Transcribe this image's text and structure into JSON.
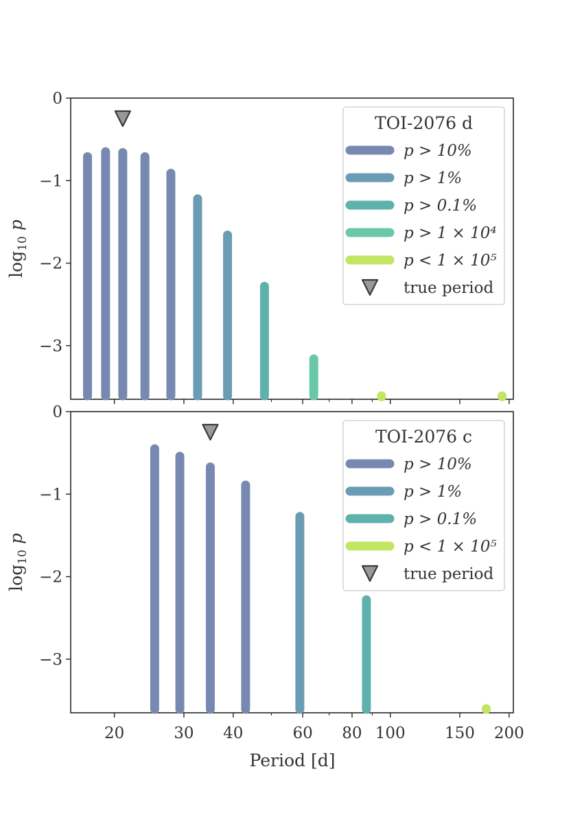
{
  "chart_data": [
    {
      "type": "bar",
      "panel": "top",
      "title": "TOI-2076 d",
      "xlabel": "",
      "ylabel": "log₁₀ p",
      "x_scale": "log",
      "xlim": [
        15.5,
        205
      ],
      "ylim": [
        -3.65,
        0
      ],
      "yticks": [
        0,
        -1,
        -2,
        -3
      ],
      "ytick_labels": [
        "0",
        "−1",
        "−2",
        "−3"
      ],
      "legend_position": "top-right",
      "legend": [
        {
          "label": "p > 10%",
          "color": "#7789b0",
          "kind": "line"
        },
        {
          "label": "p > 1%",
          "color": "#6a9cb4",
          "kind": "line"
        },
        {
          "label": "p > 0.1%",
          "color": "#5fb2ac",
          "kind": "line"
        },
        {
          "label": "p > 1 × 10⁴",
          "color": "#69c9a6",
          "kind": "line"
        },
        {
          "label": "p < 1 × 10⁵",
          "color": "#c2e562",
          "kind": "line"
        },
        {
          "label": "true period",
          "color": "#999999",
          "kind": "triangle"
        }
      ],
      "true_period": 21.0,
      "bars": [
        {
          "x": 17.1,
          "y": -0.71,
          "color": "#7789b0"
        },
        {
          "x": 19.0,
          "y": -0.65,
          "color": "#7789b0"
        },
        {
          "x": 21.0,
          "y": -0.66,
          "color": "#7789b0"
        },
        {
          "x": 23.9,
          "y": -0.71,
          "color": "#7789b0"
        },
        {
          "x": 27.8,
          "y": -0.91,
          "color": "#7789b0"
        },
        {
          "x": 32.5,
          "y": -1.22,
          "color": "#6a9cb4"
        },
        {
          "x": 38.7,
          "y": -1.66,
          "color": "#6a9cb4"
        },
        {
          "x": 48.0,
          "y": -2.28,
          "color": "#5fb2ac"
        },
        {
          "x": 64.0,
          "y": -3.16,
          "color": "#69c9a6"
        },
        {
          "x": 95.0,
          "y": -3.62,
          "color": "#c2e562"
        },
        {
          "x": 192.0,
          "y": -3.62,
          "color": "#c2e562"
        }
      ]
    },
    {
      "type": "bar",
      "panel": "bottom",
      "title": "TOI-2076 c",
      "xlabel": "Period [d]",
      "ylabel": "log₁₀ p",
      "x_scale": "log",
      "xlim": [
        15.5,
        205
      ],
      "ylim": [
        -3.65,
        0
      ],
      "xticks": [
        20,
        30,
        40,
        60,
        80,
        100,
        150,
        200
      ],
      "xtick_labels": [
        "20",
        "30",
        "40",
        "60",
        "80",
        "100",
        "150",
        "200"
      ],
      "yticks": [
        0,
        -1,
        -2,
        -3
      ],
      "ytick_labels": [
        "0",
        "−1",
        "−2",
        "−3"
      ],
      "legend_position": "top-right",
      "legend": [
        {
          "label": "p > 10%",
          "color": "#7789b0",
          "kind": "line"
        },
        {
          "label": "p > 1%",
          "color": "#6a9cb4",
          "kind": "line"
        },
        {
          "label": "p > 0.1%",
          "color": "#5fb2ac",
          "kind": "line"
        },
        {
          "label": "p < 1 × 10⁵",
          "color": "#c2e562",
          "kind": "line"
        },
        {
          "label": "true period",
          "color": "#999999",
          "kind": "triangle"
        }
      ],
      "true_period": 35.0,
      "bars": [
        {
          "x": 25.3,
          "y": -0.45,
          "color": "#7789b0"
        },
        {
          "x": 29.3,
          "y": -0.54,
          "color": "#7789b0"
        },
        {
          "x": 35.0,
          "y": -0.67,
          "color": "#7789b0"
        },
        {
          "x": 43.0,
          "y": -0.89,
          "color": "#7789b0"
        },
        {
          "x": 59.0,
          "y": -1.27,
          "color": "#6a9cb4"
        },
        {
          "x": 87.0,
          "y": -2.28,
          "color": "#5fb2ac"
        },
        {
          "x": 175.0,
          "y": -3.6,
          "color": "#c2e562"
        }
      ]
    }
  ]
}
